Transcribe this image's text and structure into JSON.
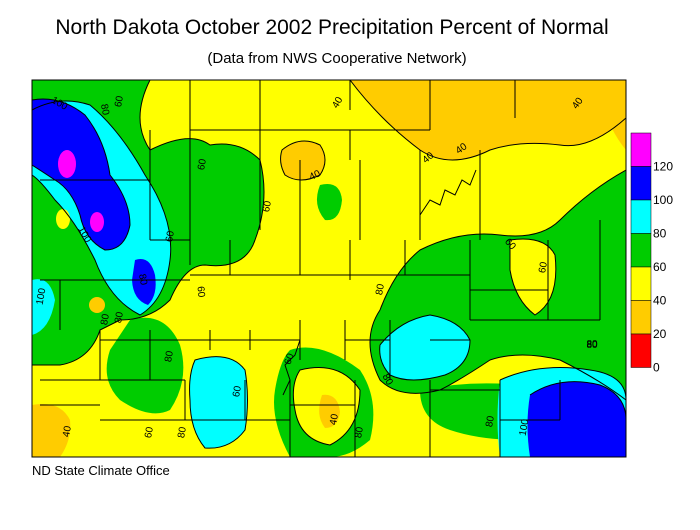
{
  "title": "North Dakota October 2002 Precipitation Percent of Normal",
  "subtitle": "(Data from NWS Cooperative Network)",
  "credit": "ND State Climate Office",
  "legend": {
    "ticks": [
      "120",
      "100",
      "80",
      "60",
      "40",
      "20",
      "0"
    ],
    "bins": [
      {
        "range": "120+",
        "color": "#ff00ff"
      },
      {
        "range": "100-120",
        "color": "#0000ff"
      },
      {
        "range": "80-100",
        "color": "#00ffff"
      },
      {
        "range": "60-80",
        "color": "#00cc00"
      },
      {
        "range": "40-60",
        "color": "#ffff00"
      },
      {
        "range": "20-40",
        "color": "#ffcc00"
      },
      {
        "range": "0-20",
        "color": "#ff0000"
      }
    ]
  },
  "contour_labels": [
    "100",
    "80",
    "60",
    "40",
    "40",
    "60",
    "60",
    "60",
    "100",
    "80",
    "100",
    "60",
    "80",
    "80",
    "80",
    "60",
    "60",
    "80",
    "80",
    "60",
    "40",
    "60",
    "80",
    "40",
    "60",
    "80",
    "40",
    "80",
    "80",
    "100",
    "40",
    "80",
    "40"
  ]
}
